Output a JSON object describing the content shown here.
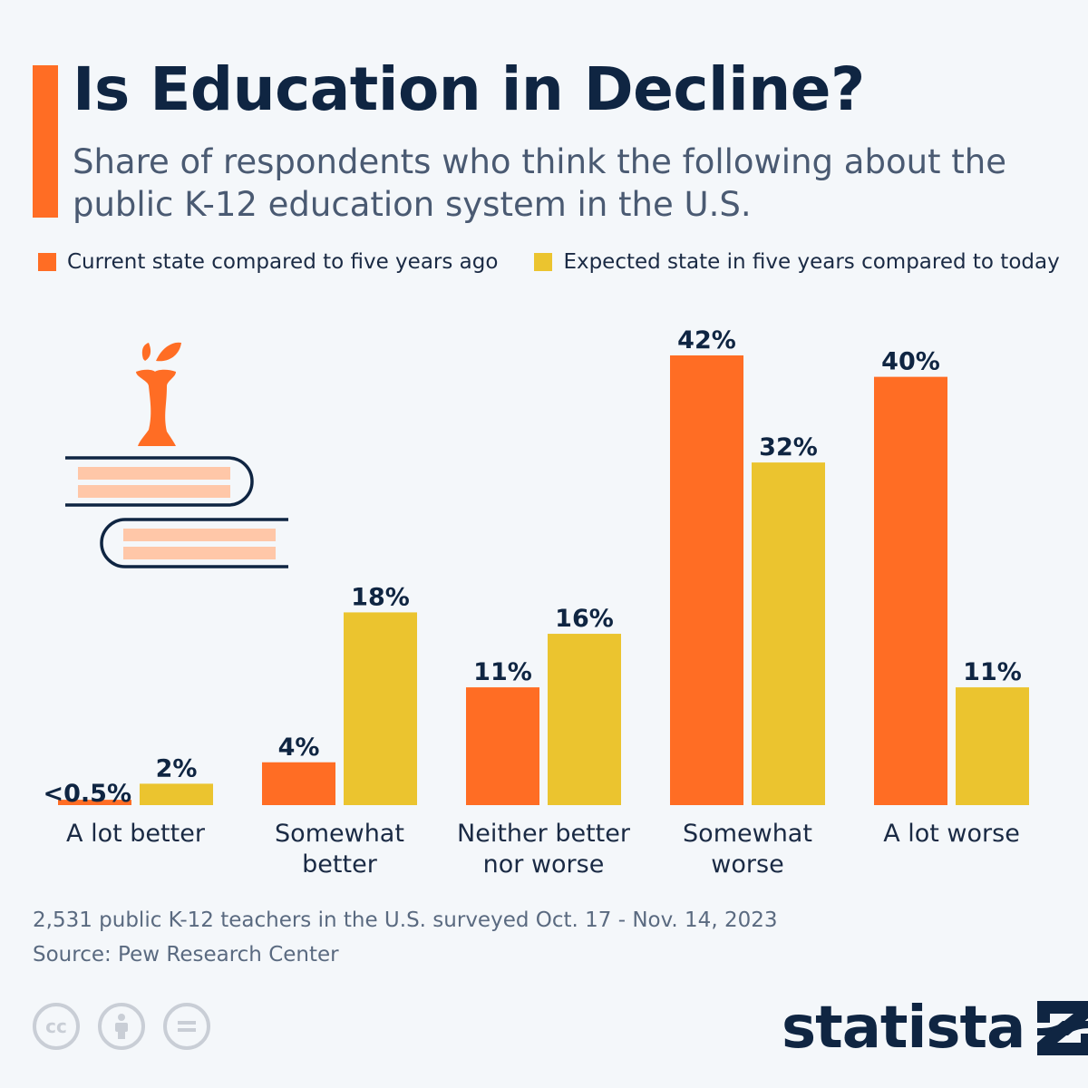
{
  "header": {
    "title": "Is Education in Decline?",
    "subtitle": "Share of respondents who think the following about the public K-12 education system in the U.S."
  },
  "colors": {
    "accent": "#ff6d24",
    "current": "#ff6d24",
    "expected": "#ebc42f",
    "text_dark": "#0f2542"
  },
  "chart_data": {
    "type": "bar",
    "categories": [
      [
        "A lot better"
      ],
      [
        "Somewhat",
        "better"
      ],
      [
        "Neither better",
        "nor worse"
      ],
      [
        "Somewhat",
        "worse"
      ],
      [
        "A lot worse"
      ]
    ],
    "series": [
      {
        "name": "Current state compared to five years ago",
        "values": [
          0.5,
          4,
          11,
          42,
          40
        ],
        "labels": [
          "<0.5%",
          "4%",
          "11%",
          "42%",
          "40%"
        ]
      },
      {
        "name": "Expected state in five years compared to today",
        "values": [
          2,
          18,
          16,
          32,
          11
        ],
        "labels": [
          "2%",
          "18%",
          "16%",
          "32%",
          "11%"
        ]
      }
    ],
    "ylim": [
      0,
      42
    ],
    "grid": false,
    "legend_position": "top-left"
  },
  "footer": {
    "note": "2,531 public K-12 teachers in the U.S. surveyed Oct. 17 - Nov. 14, 2023",
    "source": "Source: Pew Research Center",
    "cc_icons": [
      "cc-icon",
      "attribution-icon",
      "no-derivatives-icon"
    ],
    "logo": "statista"
  }
}
